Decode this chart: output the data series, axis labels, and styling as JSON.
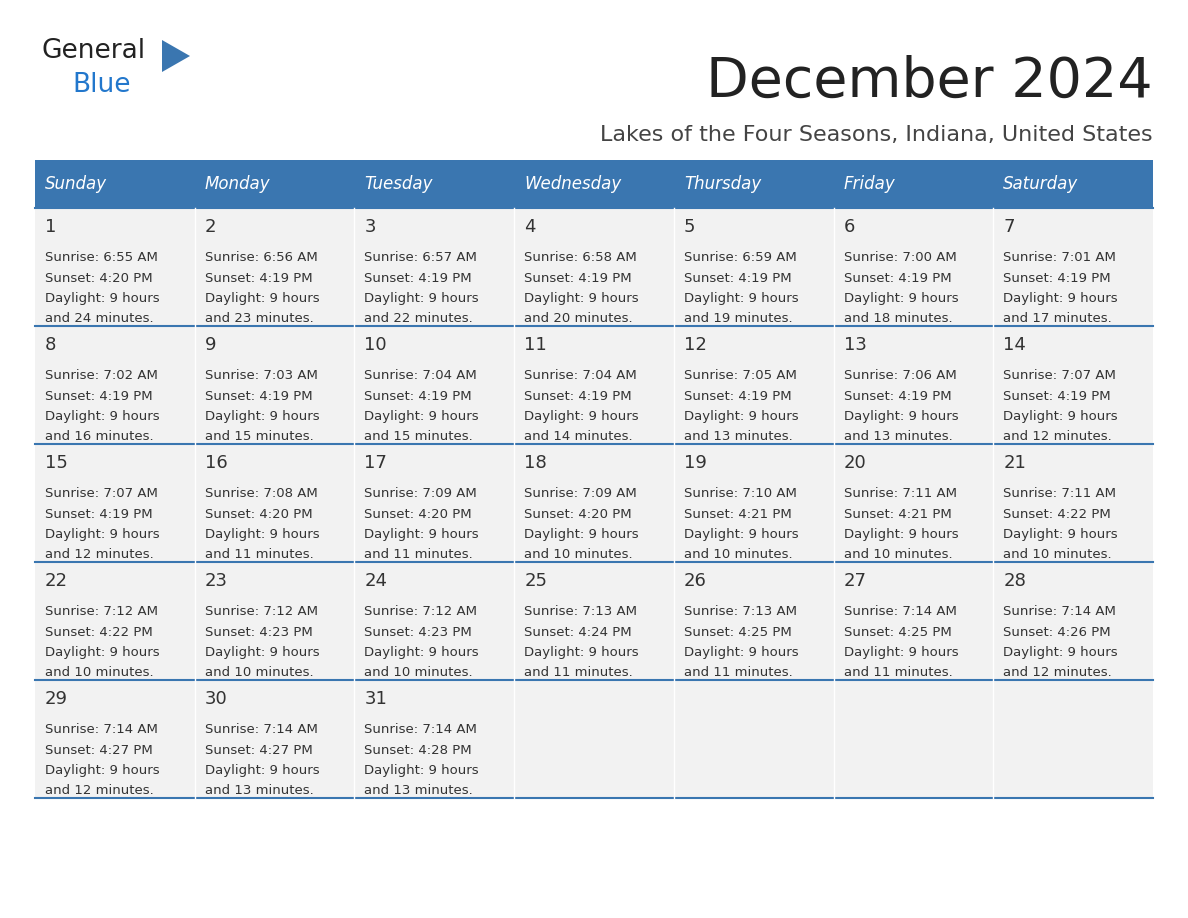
{
  "title": "December 2024",
  "subtitle": "Lakes of the Four Seasons, Indiana, United States",
  "days_of_week": [
    "Sunday",
    "Monday",
    "Tuesday",
    "Wednesday",
    "Thursday",
    "Friday",
    "Saturday"
  ],
  "header_bg_color": "#3A76B0",
  "header_text_color": "#FFFFFF",
  "cell_bg_color": "#F2F2F2",
  "cell_text_color": "#333333",
  "line_color": "#3A76B0",
  "title_color": "#222222",
  "subtitle_color": "#444444",
  "logo_general_color": "#222222",
  "logo_blue_color": "#2277CC",
  "logo_triangle_color": "#3A76B0",
  "fig_width": 11.88,
  "fig_height": 9.18,
  "dpi": 100,
  "calendar_data": [
    {
      "day": 1,
      "row": 0,
      "col": 0,
      "sunrise": "6:55 AM",
      "sunset": "4:20 PM",
      "daylight_hours": 9,
      "daylight_minutes": 24
    },
    {
      "day": 2,
      "row": 0,
      "col": 1,
      "sunrise": "6:56 AM",
      "sunset": "4:19 PM",
      "daylight_hours": 9,
      "daylight_minutes": 23
    },
    {
      "day": 3,
      "row": 0,
      "col": 2,
      "sunrise": "6:57 AM",
      "sunset": "4:19 PM",
      "daylight_hours": 9,
      "daylight_minutes": 22
    },
    {
      "day": 4,
      "row": 0,
      "col": 3,
      "sunrise": "6:58 AM",
      "sunset": "4:19 PM",
      "daylight_hours": 9,
      "daylight_minutes": 20
    },
    {
      "day": 5,
      "row": 0,
      "col": 4,
      "sunrise": "6:59 AM",
      "sunset": "4:19 PM",
      "daylight_hours": 9,
      "daylight_minutes": 19
    },
    {
      "day": 6,
      "row": 0,
      "col": 5,
      "sunrise": "7:00 AM",
      "sunset": "4:19 PM",
      "daylight_hours": 9,
      "daylight_minutes": 18
    },
    {
      "day": 7,
      "row": 0,
      "col": 6,
      "sunrise": "7:01 AM",
      "sunset": "4:19 PM",
      "daylight_hours": 9,
      "daylight_minutes": 17
    },
    {
      "day": 8,
      "row": 1,
      "col": 0,
      "sunrise": "7:02 AM",
      "sunset": "4:19 PM",
      "daylight_hours": 9,
      "daylight_minutes": 16
    },
    {
      "day": 9,
      "row": 1,
      "col": 1,
      "sunrise": "7:03 AM",
      "sunset": "4:19 PM",
      "daylight_hours": 9,
      "daylight_minutes": 15
    },
    {
      "day": 10,
      "row": 1,
      "col": 2,
      "sunrise": "7:04 AM",
      "sunset": "4:19 PM",
      "daylight_hours": 9,
      "daylight_minutes": 15
    },
    {
      "day": 11,
      "row": 1,
      "col": 3,
      "sunrise": "7:04 AM",
      "sunset": "4:19 PM",
      "daylight_hours": 9,
      "daylight_minutes": 14
    },
    {
      "day": 12,
      "row": 1,
      "col": 4,
      "sunrise": "7:05 AM",
      "sunset": "4:19 PM",
      "daylight_hours": 9,
      "daylight_minutes": 13
    },
    {
      "day": 13,
      "row": 1,
      "col": 5,
      "sunrise": "7:06 AM",
      "sunset": "4:19 PM",
      "daylight_hours": 9,
      "daylight_minutes": 13
    },
    {
      "day": 14,
      "row": 1,
      "col": 6,
      "sunrise": "7:07 AM",
      "sunset": "4:19 PM",
      "daylight_hours": 9,
      "daylight_minutes": 12
    },
    {
      "day": 15,
      "row": 2,
      "col": 0,
      "sunrise": "7:07 AM",
      "sunset": "4:19 PM",
      "daylight_hours": 9,
      "daylight_minutes": 12
    },
    {
      "day": 16,
      "row": 2,
      "col": 1,
      "sunrise": "7:08 AM",
      "sunset": "4:20 PM",
      "daylight_hours": 9,
      "daylight_minutes": 11
    },
    {
      "day": 17,
      "row": 2,
      "col": 2,
      "sunrise": "7:09 AM",
      "sunset": "4:20 PM",
      "daylight_hours": 9,
      "daylight_minutes": 11
    },
    {
      "day": 18,
      "row": 2,
      "col": 3,
      "sunrise": "7:09 AM",
      "sunset": "4:20 PM",
      "daylight_hours": 9,
      "daylight_minutes": 10
    },
    {
      "day": 19,
      "row": 2,
      "col": 4,
      "sunrise": "7:10 AM",
      "sunset": "4:21 PM",
      "daylight_hours": 9,
      "daylight_minutes": 10
    },
    {
      "day": 20,
      "row": 2,
      "col": 5,
      "sunrise": "7:11 AM",
      "sunset": "4:21 PM",
      "daylight_hours": 9,
      "daylight_minutes": 10
    },
    {
      "day": 21,
      "row": 2,
      "col": 6,
      "sunrise": "7:11 AM",
      "sunset": "4:22 PM",
      "daylight_hours": 9,
      "daylight_minutes": 10
    },
    {
      "day": 22,
      "row": 3,
      "col": 0,
      "sunrise": "7:12 AM",
      "sunset": "4:22 PM",
      "daylight_hours": 9,
      "daylight_minutes": 10
    },
    {
      "day": 23,
      "row": 3,
      "col": 1,
      "sunrise": "7:12 AM",
      "sunset": "4:23 PM",
      "daylight_hours": 9,
      "daylight_minutes": 10
    },
    {
      "day": 24,
      "row": 3,
      "col": 2,
      "sunrise": "7:12 AM",
      "sunset": "4:23 PM",
      "daylight_hours": 9,
      "daylight_minutes": 10
    },
    {
      "day": 25,
      "row": 3,
      "col": 3,
      "sunrise": "7:13 AM",
      "sunset": "4:24 PM",
      "daylight_hours": 9,
      "daylight_minutes": 11
    },
    {
      "day": 26,
      "row": 3,
      "col": 4,
      "sunrise": "7:13 AM",
      "sunset": "4:25 PM",
      "daylight_hours": 9,
      "daylight_minutes": 11
    },
    {
      "day": 27,
      "row": 3,
      "col": 5,
      "sunrise": "7:14 AM",
      "sunset": "4:25 PM",
      "daylight_hours": 9,
      "daylight_minutes": 11
    },
    {
      "day": 28,
      "row": 3,
      "col": 6,
      "sunrise": "7:14 AM",
      "sunset": "4:26 PM",
      "daylight_hours": 9,
      "daylight_minutes": 12
    },
    {
      "day": 29,
      "row": 4,
      "col": 0,
      "sunrise": "7:14 AM",
      "sunset": "4:27 PM",
      "daylight_hours": 9,
      "daylight_minutes": 12
    },
    {
      "day": 30,
      "row": 4,
      "col": 1,
      "sunrise": "7:14 AM",
      "sunset": "4:27 PM",
      "daylight_hours": 9,
      "daylight_minutes": 13
    },
    {
      "day": 31,
      "row": 4,
      "col": 2,
      "sunrise": "7:14 AM",
      "sunset": "4:28 PM",
      "daylight_hours": 9,
      "daylight_minutes": 13
    }
  ]
}
